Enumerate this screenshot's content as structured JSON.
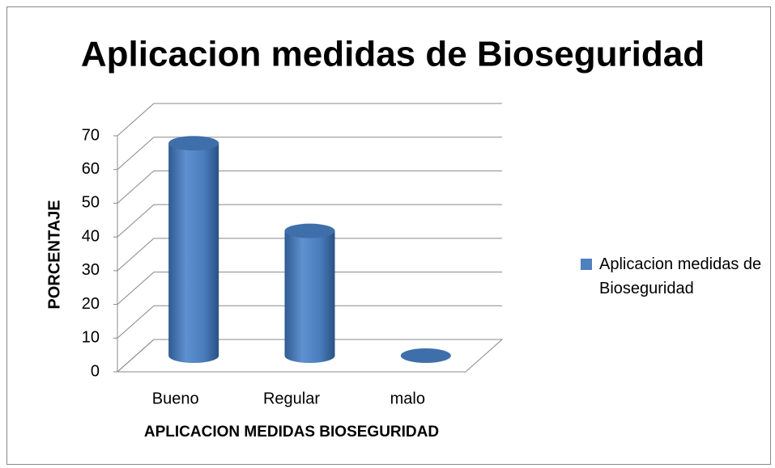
{
  "chart_data": {
    "type": "bar3d",
    "title": "Aplicacion medidas de Bioseguridad",
    "categories": [
      "Bueno",
      "Regular",
      "malo"
    ],
    "series": [
      {
        "name": "Aplicacion medidas de Bioseguridad",
        "color": "#4f81bd",
        "values": [
          63,
          37,
          0
        ]
      }
    ],
    "ylim": [
      0,
      70
    ],
    "yticks": [
      0,
      10,
      20,
      30,
      40,
      50,
      60,
      70
    ],
    "y_label": "PORCENTAJE",
    "x_label": "APLICACION MEDIDAS BIOSEGURIDAD",
    "grid": true,
    "legend": "right"
  }
}
